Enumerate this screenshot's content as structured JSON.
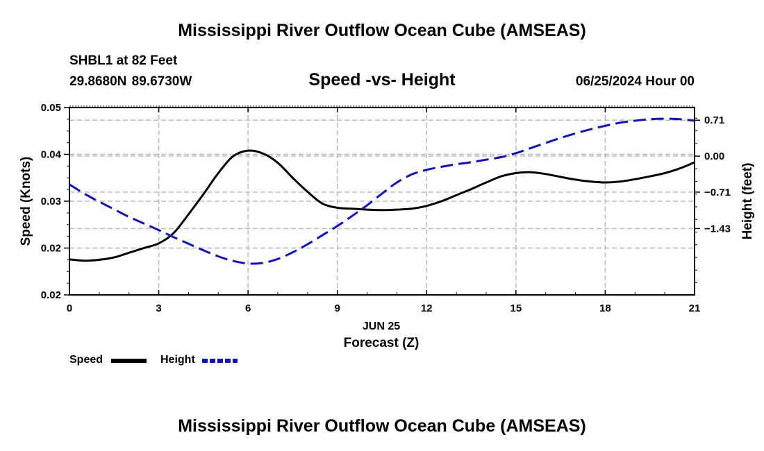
{
  "header": {
    "title": "Mississippi River Outflow Ocean Cube (AMSEAS)",
    "station": "SHBL1 at 82 Feet",
    "coordinates": "29.8680N  89.6730W",
    "chart_subtitle": "Speed -vs- Height",
    "datetime": "06/25/2024 Hour 00"
  },
  "footer": {
    "title": "Mississippi River Outflow Ocean Cube (AMSEAS)"
  },
  "legend": {
    "speed_label": "Speed",
    "height_label": "Height"
  },
  "colors": {
    "speed": "#000000",
    "height": "#1010c8",
    "grid": "#bbbbbb"
  },
  "chart_data": {
    "type": "line",
    "title": "Speed -vs- Height",
    "xlabel": "Forecast (Z)",
    "xlabel_date": "JUN 25",
    "ylabel_left": "Speed (Knots)",
    "ylabel_right": "Height (feet)",
    "xlim": [
      0,
      21
    ],
    "x_ticks": [
      0,
      3,
      6,
      9,
      12,
      15,
      18,
      21
    ],
    "left_ylim": [
      0.0,
      4.0
    ],
    "left_tick_values": [
      0,
      1,
      2,
      3,
      4
    ],
    "left_tick_labels": [
      "0.02",
      "0.02",
      "0.03",
      "0.04",
      "0.05"
    ],
    "right_ylim": [
      -2.74,
      0.96
    ],
    "right_tick_values": [
      0.71,
      0.0,
      -0.71,
      -1.43
    ],
    "right_tick_labels": [
      "0.71",
      "0.00",
      "−0.71",
      "−1.43"
    ],
    "grid": true,
    "legend_position": "bottom-left",
    "series": [
      {
        "name": "Speed",
        "axis": "left",
        "style": "solid",
        "x": [
          0,
          0.5,
          1,
          1.5,
          2,
          2.5,
          3,
          3.5,
          4,
          4.5,
          5,
          5.5,
          6,
          6.5,
          7,
          7.5,
          8,
          8.5,
          9,
          9.5,
          10,
          10.5,
          11,
          11.5,
          12,
          12.5,
          13,
          13.5,
          14,
          14.5,
          15,
          15.5,
          16,
          16.5,
          17,
          17.5,
          18,
          18.5,
          19,
          19.5,
          20,
          20.5,
          21
        ],
        "values": [
          0.76,
          0.73,
          0.75,
          0.8,
          0.9,
          1.0,
          1.1,
          1.32,
          1.72,
          2.15,
          2.6,
          2.96,
          3.08,
          3.02,
          2.82,
          2.5,
          2.2,
          1.95,
          1.86,
          1.84,
          1.82,
          1.81,
          1.82,
          1.84,
          1.9,
          2.0,
          2.13,
          2.26,
          2.4,
          2.53,
          2.6,
          2.62,
          2.58,
          2.52,
          2.46,
          2.42,
          2.4,
          2.42,
          2.47,
          2.53,
          2.6,
          2.7,
          2.83
        ]
      },
      {
        "name": "Height",
        "axis": "right",
        "style": "dashed",
        "x": [
          0,
          0.5,
          1,
          1.5,
          2,
          2.5,
          3,
          3.5,
          4,
          4.5,
          5,
          5.5,
          6,
          6.5,
          7,
          7.5,
          8,
          8.5,
          9,
          9.5,
          10,
          10.5,
          11,
          11.5,
          12,
          12.5,
          13,
          13.5,
          14,
          14.5,
          15,
          15.5,
          16,
          16.5,
          17,
          17.5,
          18,
          18.5,
          19,
          19.5,
          20,
          20.5,
          21
        ],
        "values": [
          -0.56,
          -0.74,
          -0.9,
          -1.05,
          -1.2,
          -1.33,
          -1.46,
          -1.6,
          -1.73,
          -1.86,
          -1.98,
          -2.07,
          -2.12,
          -2.11,
          -2.03,
          -1.9,
          -1.74,
          -1.56,
          -1.38,
          -1.18,
          -0.97,
          -0.74,
          -0.52,
          -0.36,
          -0.27,
          -0.21,
          -0.16,
          -0.12,
          -0.07,
          -0.02,
          0.06,
          0.16,
          0.26,
          0.36,
          0.45,
          0.53,
          0.6,
          0.66,
          0.7,
          0.73,
          0.74,
          0.73,
          0.7
        ]
      }
    ]
  }
}
